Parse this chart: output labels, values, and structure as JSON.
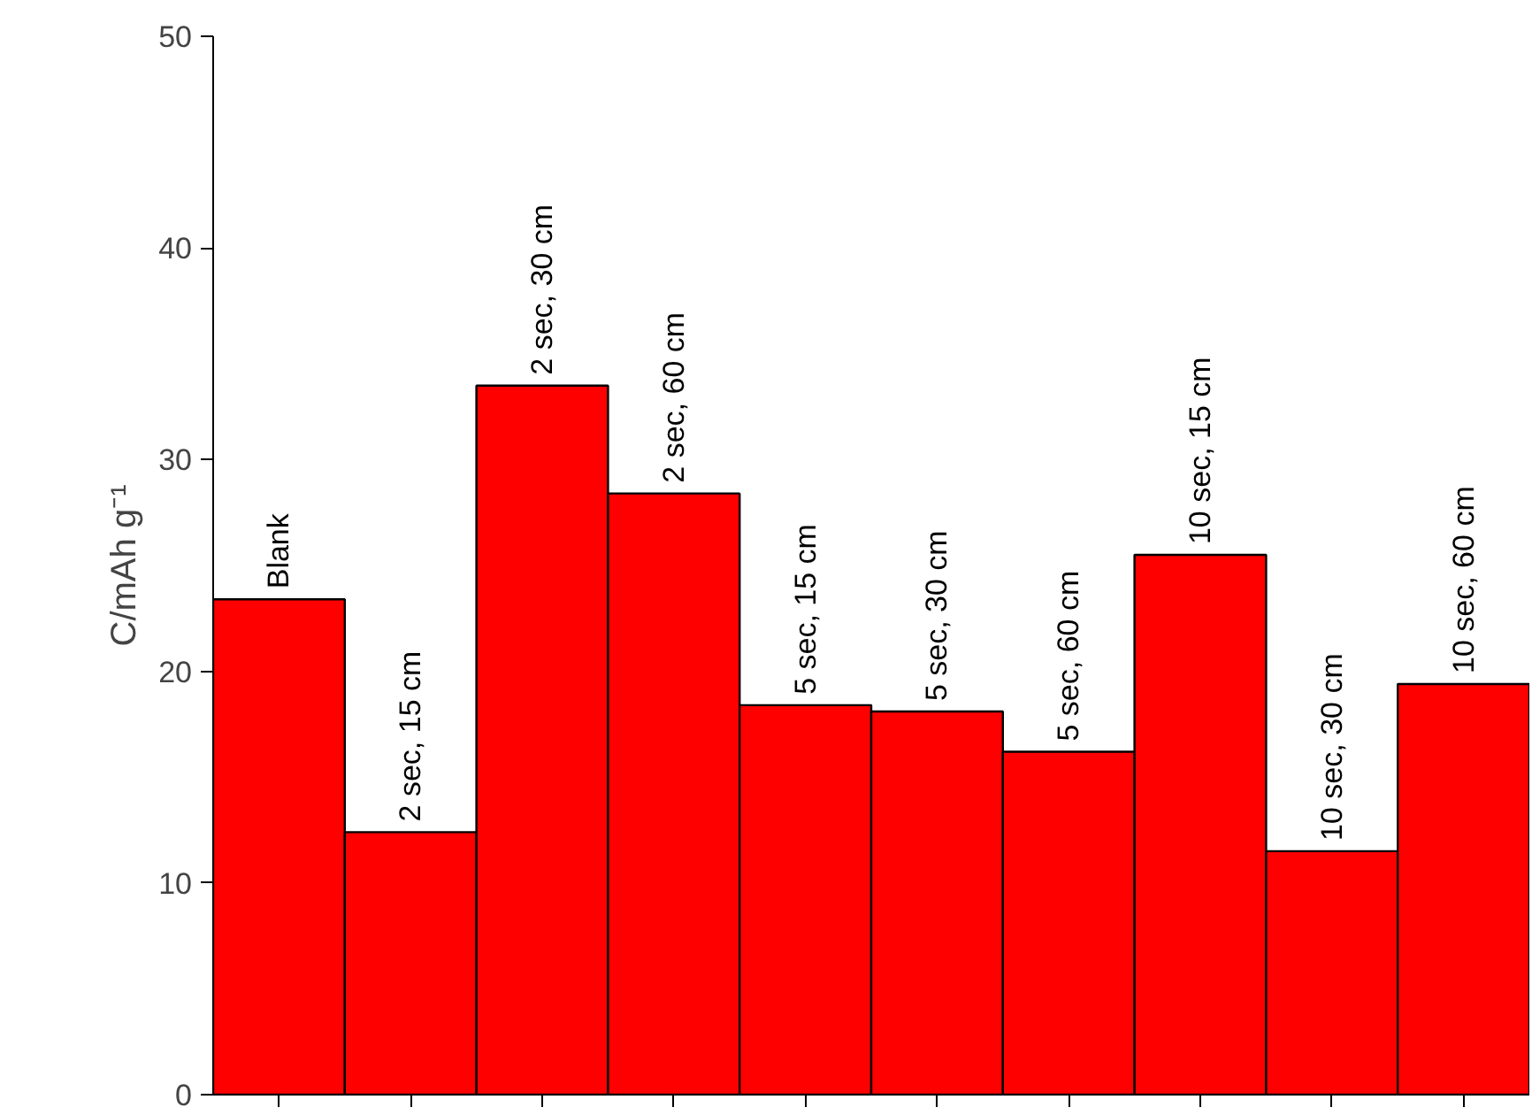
{
  "chart_data": {
    "type": "bar",
    "ylabel": "C/mAh g⁻¹",
    "categories": [
      "Blank",
      "2 sec, 15 cm",
      "2 sec, 30 cm",
      "2 sec, 60 cm",
      "5 sec, 15 cm",
      "5 sec, 30 cm",
      "5 sec, 60 cm",
      "10 sec, 15 cm",
      "10 sec, 30 cm",
      "10 sec, 60 cm"
    ],
    "values": [
      23.4,
      12.4,
      33.5,
      28.4,
      18.4,
      18.1,
      16.2,
      25.5,
      11.5,
      19.4
    ],
    "color": "#ff0000",
    "ylim": [
      0,
      50
    ],
    "yticks": [
      0,
      10,
      20,
      30,
      40,
      50
    ],
    "grid": false,
    "tick_labels": "y"
  }
}
